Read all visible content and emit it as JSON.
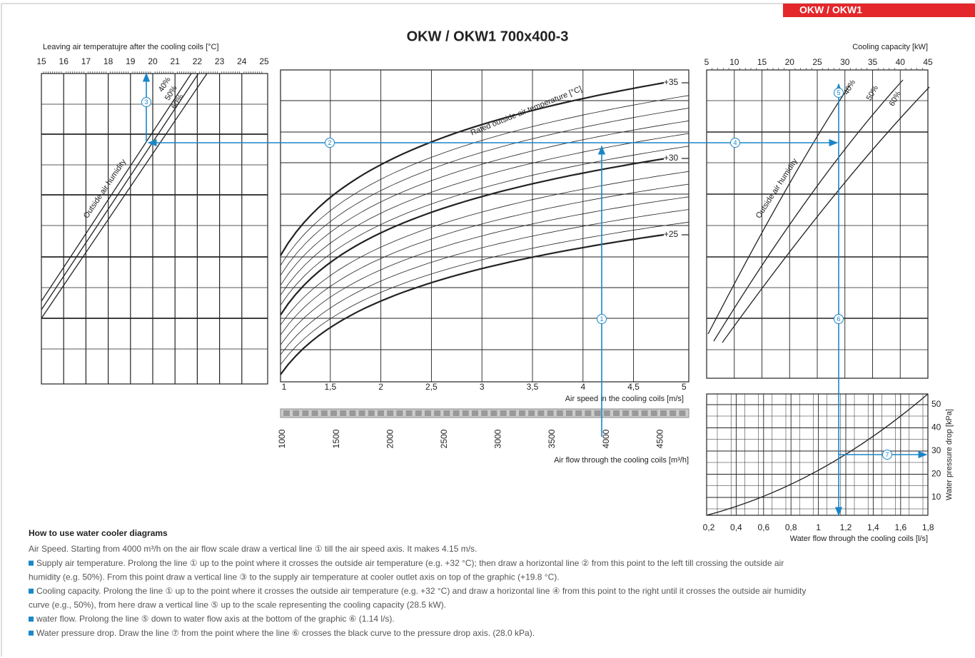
{
  "badge": "OKW / OKW1",
  "title": "OKW / OKW1 700x400-3",
  "left": {
    "axis_label": "Leaving air temperatujre after the cooling coils [°C]",
    "ticks": [
      "15",
      "16",
      "17",
      "18",
      "19",
      "20",
      "21",
      "22",
      "23",
      "24",
      "25"
    ],
    "humidity": [
      "40%",
      "50%",
      "60%"
    ],
    "humidity_label": "Outside air humidity"
  },
  "middle": {
    "speed_ticks": [
      "1",
      "1,5",
      "2",
      "2,5",
      "3",
      "3,5",
      "4",
      "4,5",
      "5"
    ],
    "speed_label": "Air speed in the cooling coils [m/s]",
    "flow_ticks": [
      "1000",
      "1500",
      "2000",
      "2500",
      "3000",
      "3500",
      "4000",
      "4500"
    ],
    "flow_label": "Air flow through the cooling coils [m³/h]",
    "temps": [
      "+35",
      "+30",
      "+25"
    ],
    "temp_label": "Rated outside air temperature [°C]"
  },
  "right": {
    "capacity_label": "Cooling capacity [kW]",
    "capacity_ticks": [
      "5",
      "10",
      "15",
      "20",
      "25",
      "30",
      "35",
      "40",
      "45"
    ],
    "humidity": [
      "40%",
      "50%",
      "60%"
    ],
    "humidity_label": "Outside air humidity",
    "pressure_ticks": [
      "50",
      "40",
      "30",
      "20",
      "10"
    ],
    "pressure_label": "Water pressure drop [kPa]",
    "flow_ticks": [
      "0,2",
      "0,4",
      "0,6",
      "0,8",
      "1",
      "1,2",
      "1,4",
      "1,6",
      "1,8"
    ],
    "flow_label": "Water flow through the cooling coils [l/s]"
  },
  "markers": [
    "1",
    "2",
    "3",
    "4",
    "5",
    "6",
    "7"
  ],
  "instructions": {
    "heading": "How to use water cooler diagrams",
    "lines": [
      "Air Speed. Starting from 4000 m³/h on the air flow scale draw a vertical line ① till the air speed axis. It makes 4.15 m/s.",
      "Supply air temperature. Prolong the line ① up to the point where it crosses the outside air temperature (e.g. +32 °C); then draw a horizontal line ② from this point to the left till  crossing  the outside air",
      "humidity (e.g. 50%). From this point draw a vertical line ③ to the supply air temperature at cooler outlet axis on top of the graphic (+19.8 °C).",
      "Cooling capacity. Prolong the line ① up to the point where it crosses the outside air temperature (e.g. +32 °C) and draw a horizontal line ④ from this point to the right until it crosses the outside air humidity",
      "curve (e.g., 50%), from here draw a vertical line ⑤ up to the scale representing the cooling capacity (28.5 kW).",
      "water flow. Prolong the line ⑤ down to water flow  axis at the bottom of the graphic ⑥ (1.14 l/s).",
      "Water pressure drop. Draw the line ⑦ from the point where the line ⑥ crosses the black curve to the pressure drop axis. (28.0 kPa)."
    ]
  }
}
